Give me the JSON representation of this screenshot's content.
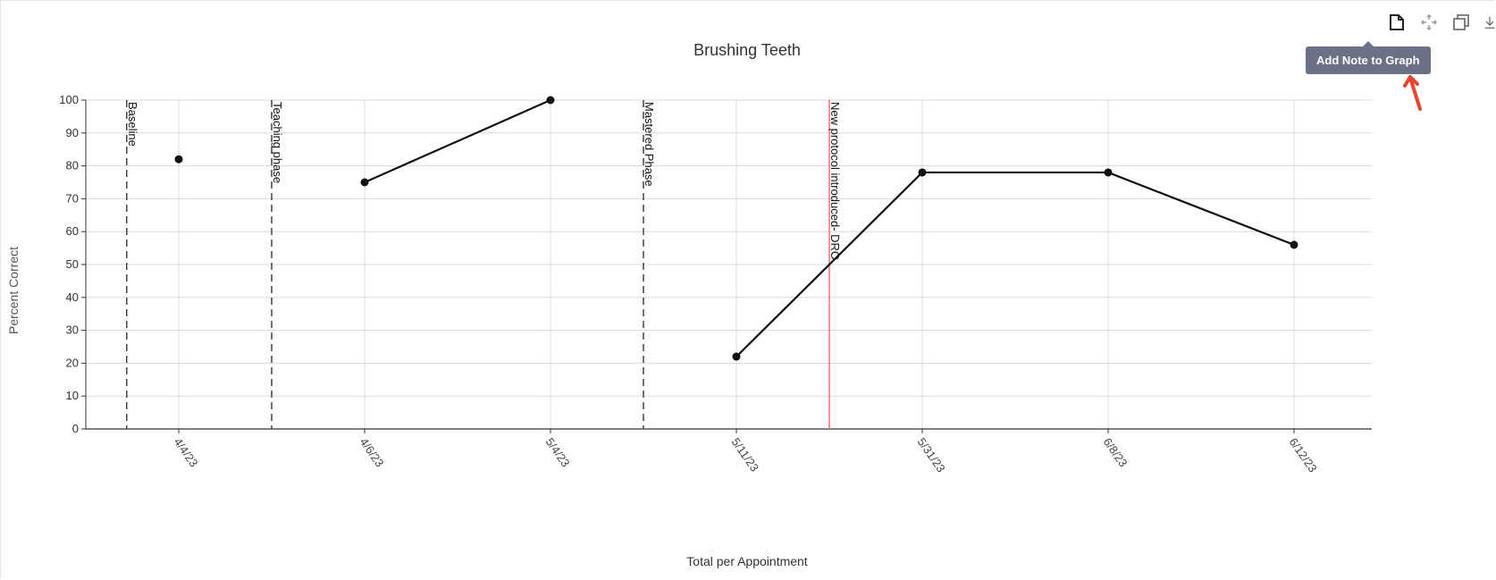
{
  "toolbar": {
    "buttons": [
      {
        "icon": "note-icon",
        "name": "add-note-button"
      },
      {
        "icon": "pan-icon",
        "name": "pan-button"
      },
      {
        "icon": "copy-icon",
        "name": "copy-button"
      },
      {
        "icon": "download-icon",
        "name": "download-button"
      }
    ],
    "tooltip": "Add Note to Graph"
  },
  "colors": {
    "line": "#111111",
    "grid": "#d9d9d9",
    "phase_line": "#444444",
    "protocol_line": "#ff6b6b",
    "tooltip_bg": "#6b7187",
    "arrow": "#e8442e"
  },
  "chart_data": {
    "type": "line",
    "title": "Brushing Teeth",
    "xlabel": "Total per Appointment",
    "ylabel": "Percent Correct",
    "ylim": [
      0,
      100
    ],
    "yticks": [
      0,
      10,
      20,
      30,
      40,
      50,
      60,
      70,
      80,
      90,
      100
    ],
    "categories": [
      "4/4/23",
      "4/6/23",
      "5/4/23",
      "5/11/23",
      "5/31/23",
      "6/8/23",
      "6/12/23"
    ],
    "series": [
      {
        "values": [
          82,
          75,
          100,
          22,
          78,
          78,
          56
        ],
        "break_after": [
          0,
          2
        ]
      }
    ],
    "grid": true,
    "annotations": [
      {
        "label": "Baseline",
        "position": -0.28,
        "style": "dashed"
      },
      {
        "label": "Teaching phase",
        "position": 0.5,
        "style": "dashed"
      },
      {
        "label": "Mastered Phase",
        "position": 2.5,
        "style": "dashed"
      },
      {
        "label": "New protocol introduced- DRO",
        "position": 3.5,
        "style": "solid-red"
      }
    ]
  }
}
